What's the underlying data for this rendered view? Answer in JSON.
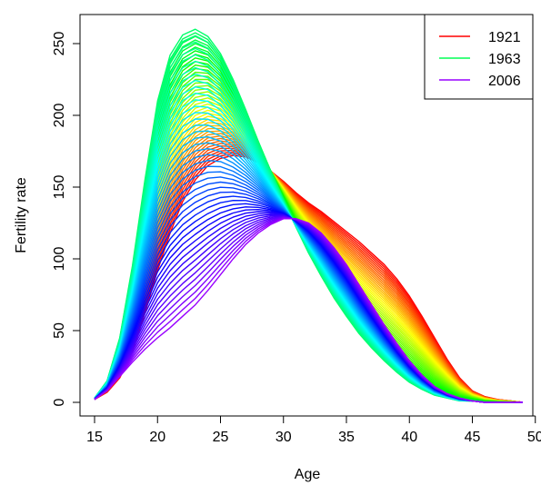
{
  "chart_data": {
    "type": "line",
    "title": "",
    "xlabel": "Age",
    "ylabel": "Fertility rate",
    "xlim": [
      15,
      49
    ],
    "ylim": [
      0,
      260
    ],
    "x_ticks": [
      15,
      20,
      25,
      30,
      35,
      40,
      45,
      50
    ],
    "y_ticks": [
      0,
      50,
      100,
      150,
      200,
      250
    ],
    "x": [
      15,
      16,
      17,
      18,
      19,
      20,
      21,
      22,
      23,
      24,
      25,
      26,
      27,
      28,
      29,
      30,
      31,
      32,
      33,
      34,
      35,
      36,
      37,
      38,
      39,
      40,
      41,
      42,
      43,
      44,
      45,
      46,
      47,
      48,
      49
    ],
    "grid": false,
    "legend_position": "top-right",
    "series_color_scale": "rainbow from red (1921) through green (1963) to purple (2006)",
    "series": [
      {
        "name": "1921",
        "color": "#ff0000",
        "values": [
          2,
          7,
          17,
          35,
          62,
          92,
          118,
          140,
          155,
          165,
          170,
          172,
          171,
          167,
          161,
          154,
          146,
          139,
          133,
          126,
          119,
          112,
          104,
          96,
          86,
          74,
          60,
          45,
          30,
          17,
          8,
          4,
          2,
          1,
          0
        ]
      },
      {
        "name": "1963",
        "color": "#00ff55",
        "values": [
          3,
          15,
          45,
          95,
          155,
          210,
          242,
          256,
          260,
          255,
          243,
          225,
          204,
          182,
          161,
          141,
          122,
          104,
          88,
          73,
          60,
          48,
          38,
          29,
          21,
          14,
          9,
          5,
          3,
          1,
          1,
          0,
          0,
          0,
          0
        ]
      },
      {
        "name": "2006",
        "color": "#9900ff",
        "values": [
          2,
          8,
          18,
          28,
          37,
          45,
          52,
          60,
          68,
          78,
          89,
          100,
          110,
          118,
          124,
          128,
          128,
          125,
          118,
          108,
          96,
          82,
          68,
          54,
          41,
          29,
          19,
          11,
          6,
          3,
          1,
          0,
          0,
          0,
          0
        ]
      }
    ],
    "legend": [
      {
        "label": "1921",
        "color": "#ff0000"
      },
      {
        "label": "1963",
        "color": "#00ff55"
      },
      {
        "label": "2006",
        "color": "#9900ff"
      }
    ]
  }
}
